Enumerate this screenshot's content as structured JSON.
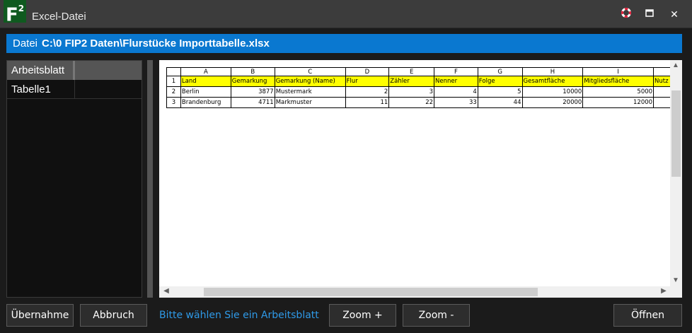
{
  "window": {
    "title": "Excel-Datei",
    "logo": "F",
    "logo_sup": "2",
    "icons": [
      "help-lifebuoy-icon",
      "maximize-icon",
      "close-icon"
    ]
  },
  "file": {
    "label": "Datei",
    "path": "C:\\0 FIP2 Daten\\Flurstücke Importtabelle.xlsx"
  },
  "sheets": {
    "header": "Arbeitsblatt",
    "items": [
      "Tabelle1"
    ]
  },
  "grid": {
    "columns": [
      "A",
      "B",
      "C",
      "D",
      "E",
      "F",
      "G",
      "H",
      "I",
      ""
    ],
    "rows": [
      {
        "n": "1",
        "cells": [
          "Land",
          "Gemarkung",
          "Gemarkung (Name)",
          "Flur",
          "Zähler",
          "Nenner",
          "Folge",
          "Gesamtfläche",
          "Mitgliedsfläche",
          "Nutz"
        ]
      },
      {
        "n": "2",
        "cells": [
          "Berlin",
          "3877",
          "Mustermark",
          "2",
          "3",
          "4",
          "5",
          "10000",
          "5000",
          ""
        ]
      },
      {
        "n": "3",
        "cells": [
          "Brandenburg",
          "4711",
          "Markmuster",
          "11",
          "22",
          "33",
          "44",
          "20000",
          "12000",
          ""
        ]
      }
    ],
    "header_highlight": "#ffff00"
  },
  "buttons": {
    "accept": "Übernahme",
    "cancel": "Abbruch",
    "zoom_in": "Zoom +",
    "zoom_out": "Zoom -",
    "open": "Öffnen"
  },
  "status": "Bitte wählen Sie ein Arbeitsblatt",
  "colors": {
    "accent": "#0a78d0",
    "status": "#2f9ae8",
    "logo": "#0f5a1f"
  }
}
